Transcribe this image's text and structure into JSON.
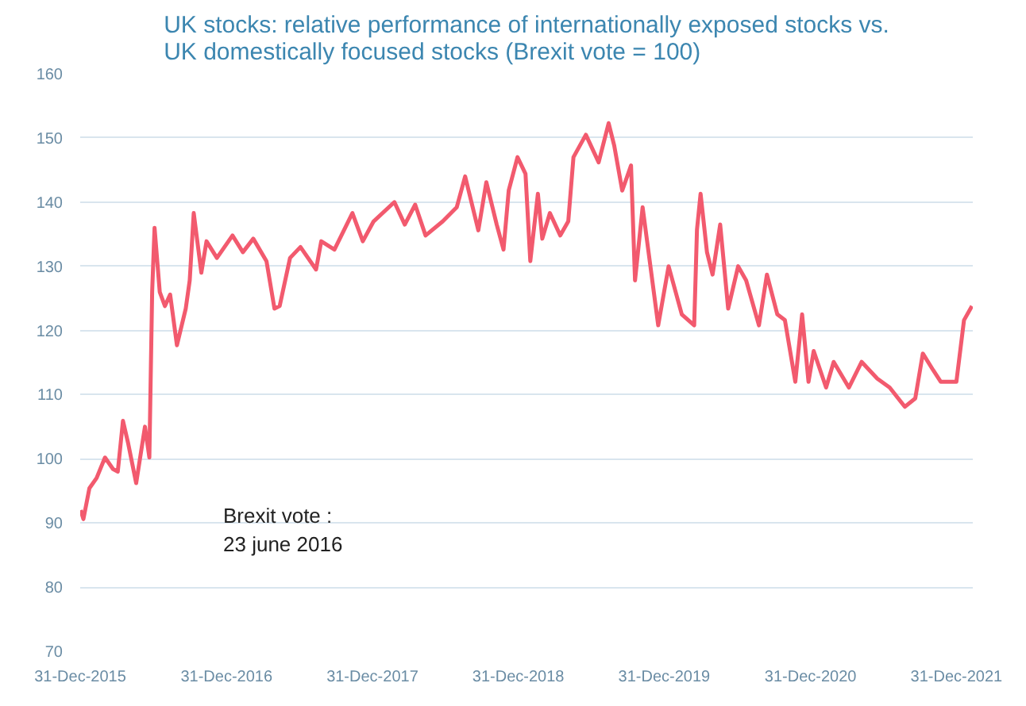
{
  "chart_data": {
    "type": "line",
    "title": "UK stocks: relative performance of internationally exposed stocks vs.\nUK domestically focused stocks (Brexit vote = 100)",
    "x": [
      "2016-01-01",
      "2016-01-08",
      "2016-01-23",
      "2016-02-10",
      "2016-03-02",
      "2016-03-22",
      "2016-04-03",
      "2016-04-16",
      "2016-04-29",
      "2016-05-19",
      "2016-06-10",
      "2016-06-21",
      "2016-06-28",
      "2016-07-04",
      "2016-07-17",
      "2016-07-30",
      "2016-08-12",
      "2016-08-29",
      "2016-09-20",
      "2016-09-30",
      "2016-10-10",
      "2016-10-29",
      "2016-11-11",
      "2016-12-07",
      "2017-01-15",
      "2017-02-10",
      "2017-03-08",
      "2017-04-10",
      "2017-04-30",
      "2017-05-13",
      "2017-06-08",
      "2017-07-04",
      "2017-08-12",
      "2017-08-25",
      "2017-09-27",
      "2017-11-11",
      "2017-12-07",
      "2018-01-03",
      "2018-02-24",
      "2018-03-22",
      "2018-04-17",
      "2018-05-13",
      "2018-06-25",
      "2018-07-30",
      "2018-08-20",
      "2018-09-22",
      "2018-10-12",
      "2018-11-07",
      "2018-11-24",
      "2018-12-07",
      "2018-12-29",
      "2019-01-18",
      "2019-01-30",
      "2019-02-18",
      "2019-03-01",
      "2019-03-20",
      "2019-04-15",
      "2019-05-05",
      "2019-05-18",
      "2019-06-18",
      "2019-07-20",
      "2019-08-14",
      "2019-08-28",
      "2019-09-17",
      "2019-10-09",
      "2019-10-19",
      "2019-11-07",
      "2019-12-16",
      "2020-01-11",
      "2020-02-13",
      "2020-03-15",
      "2020-03-22",
      "2020-03-31",
      "2020-04-16",
      "2020-04-30",
      "2020-05-19",
      "2020-06-08",
      "2020-07-03",
      "2020-07-23",
      "2020-08-24",
      "2020-09-13",
      "2020-10-09",
      "2020-10-28",
      "2020-11-23",
      "2020-12-10",
      "2020-12-26",
      "2021-01-08",
      "2021-02-08",
      "2021-02-27",
      "2021-04-06",
      "2021-05-08",
      "2021-06-16",
      "2021-07-17",
      "2021-08-24",
      "2021-09-19",
      "2021-10-08",
      "2021-11-03",
      "2021-11-22",
      "2021-12-31",
      "2022-01-19",
      "2022-02-08"
    ],
    "series": [
      {
        "color": "#f25a6e",
        "values": [
          92,
          90.6,
          95.4,
          97,
          100.2,
          98.4,
          98,
          105.9,
          102.4,
          96.2,
          105,
          100.2,
          126,
          136,
          126,
          123.8,
          125.6,
          117.7,
          123.4,
          127.8,
          138.3,
          129,
          133.9,
          131.3,
          134.8,
          132.2,
          134.3,
          130.8,
          123.4,
          123.8,
          131.3,
          133,
          129.5,
          133.9,
          132.6,
          138.3,
          133.9,
          137,
          140,
          136.5,
          139.6,
          134.8,
          137,
          139.2,
          144,
          135.6,
          143.1,
          136.5,
          132.6,
          141.8,
          147,
          144.4,
          130.8,
          141.3,
          134.3,
          138.3,
          134.8,
          137,
          147,
          150.5,
          146.2,
          152.3,
          148.8,
          141.8,
          145.7,
          127.8,
          139.2,
          120.8,
          130,
          122.5,
          120.8,
          135.7,
          141.3,
          132.2,
          128.7,
          136.5,
          123.4,
          130,
          127.8,
          120.8,
          128.7,
          122.5,
          121.6,
          112,
          122.5,
          112,
          116.8,
          111.1,
          115.1,
          111.1,
          115.1,
          112.5,
          111.1,
          108.1,
          109.4,
          116.4,
          113.8,
          112,
          112,
          121.6,
          123.8
        ]
      }
    ],
    "xlim": [
      "2015-12-31",
      "2022-02-10"
    ],
    "xticks": [
      {
        "value": "2015-12-31",
        "label": "31-Dec-2015"
      },
      {
        "value": "2016-12-31",
        "label": "31-Dec-2016"
      },
      {
        "value": "2017-12-31",
        "label": "31-Dec-2017"
      },
      {
        "value": "2018-12-31",
        "label": "31-Dec-2018"
      },
      {
        "value": "2019-12-31",
        "label": "31-Dec-2019"
      },
      {
        "value": "2020-12-31",
        "label": "31-Dec-2020"
      },
      {
        "value": "2021-12-31",
        "label": "31-Dec-2021"
      }
    ],
    "ylim": [
      70,
      160
    ],
    "yticks": [
      70,
      80,
      90,
      100,
      110,
      120,
      130,
      140,
      150,
      160
    ],
    "grid": "y",
    "marker": "none",
    "line_style": "solid",
    "annotations": [
      "Brexit vote :\n23 june 2016"
    ]
  }
}
